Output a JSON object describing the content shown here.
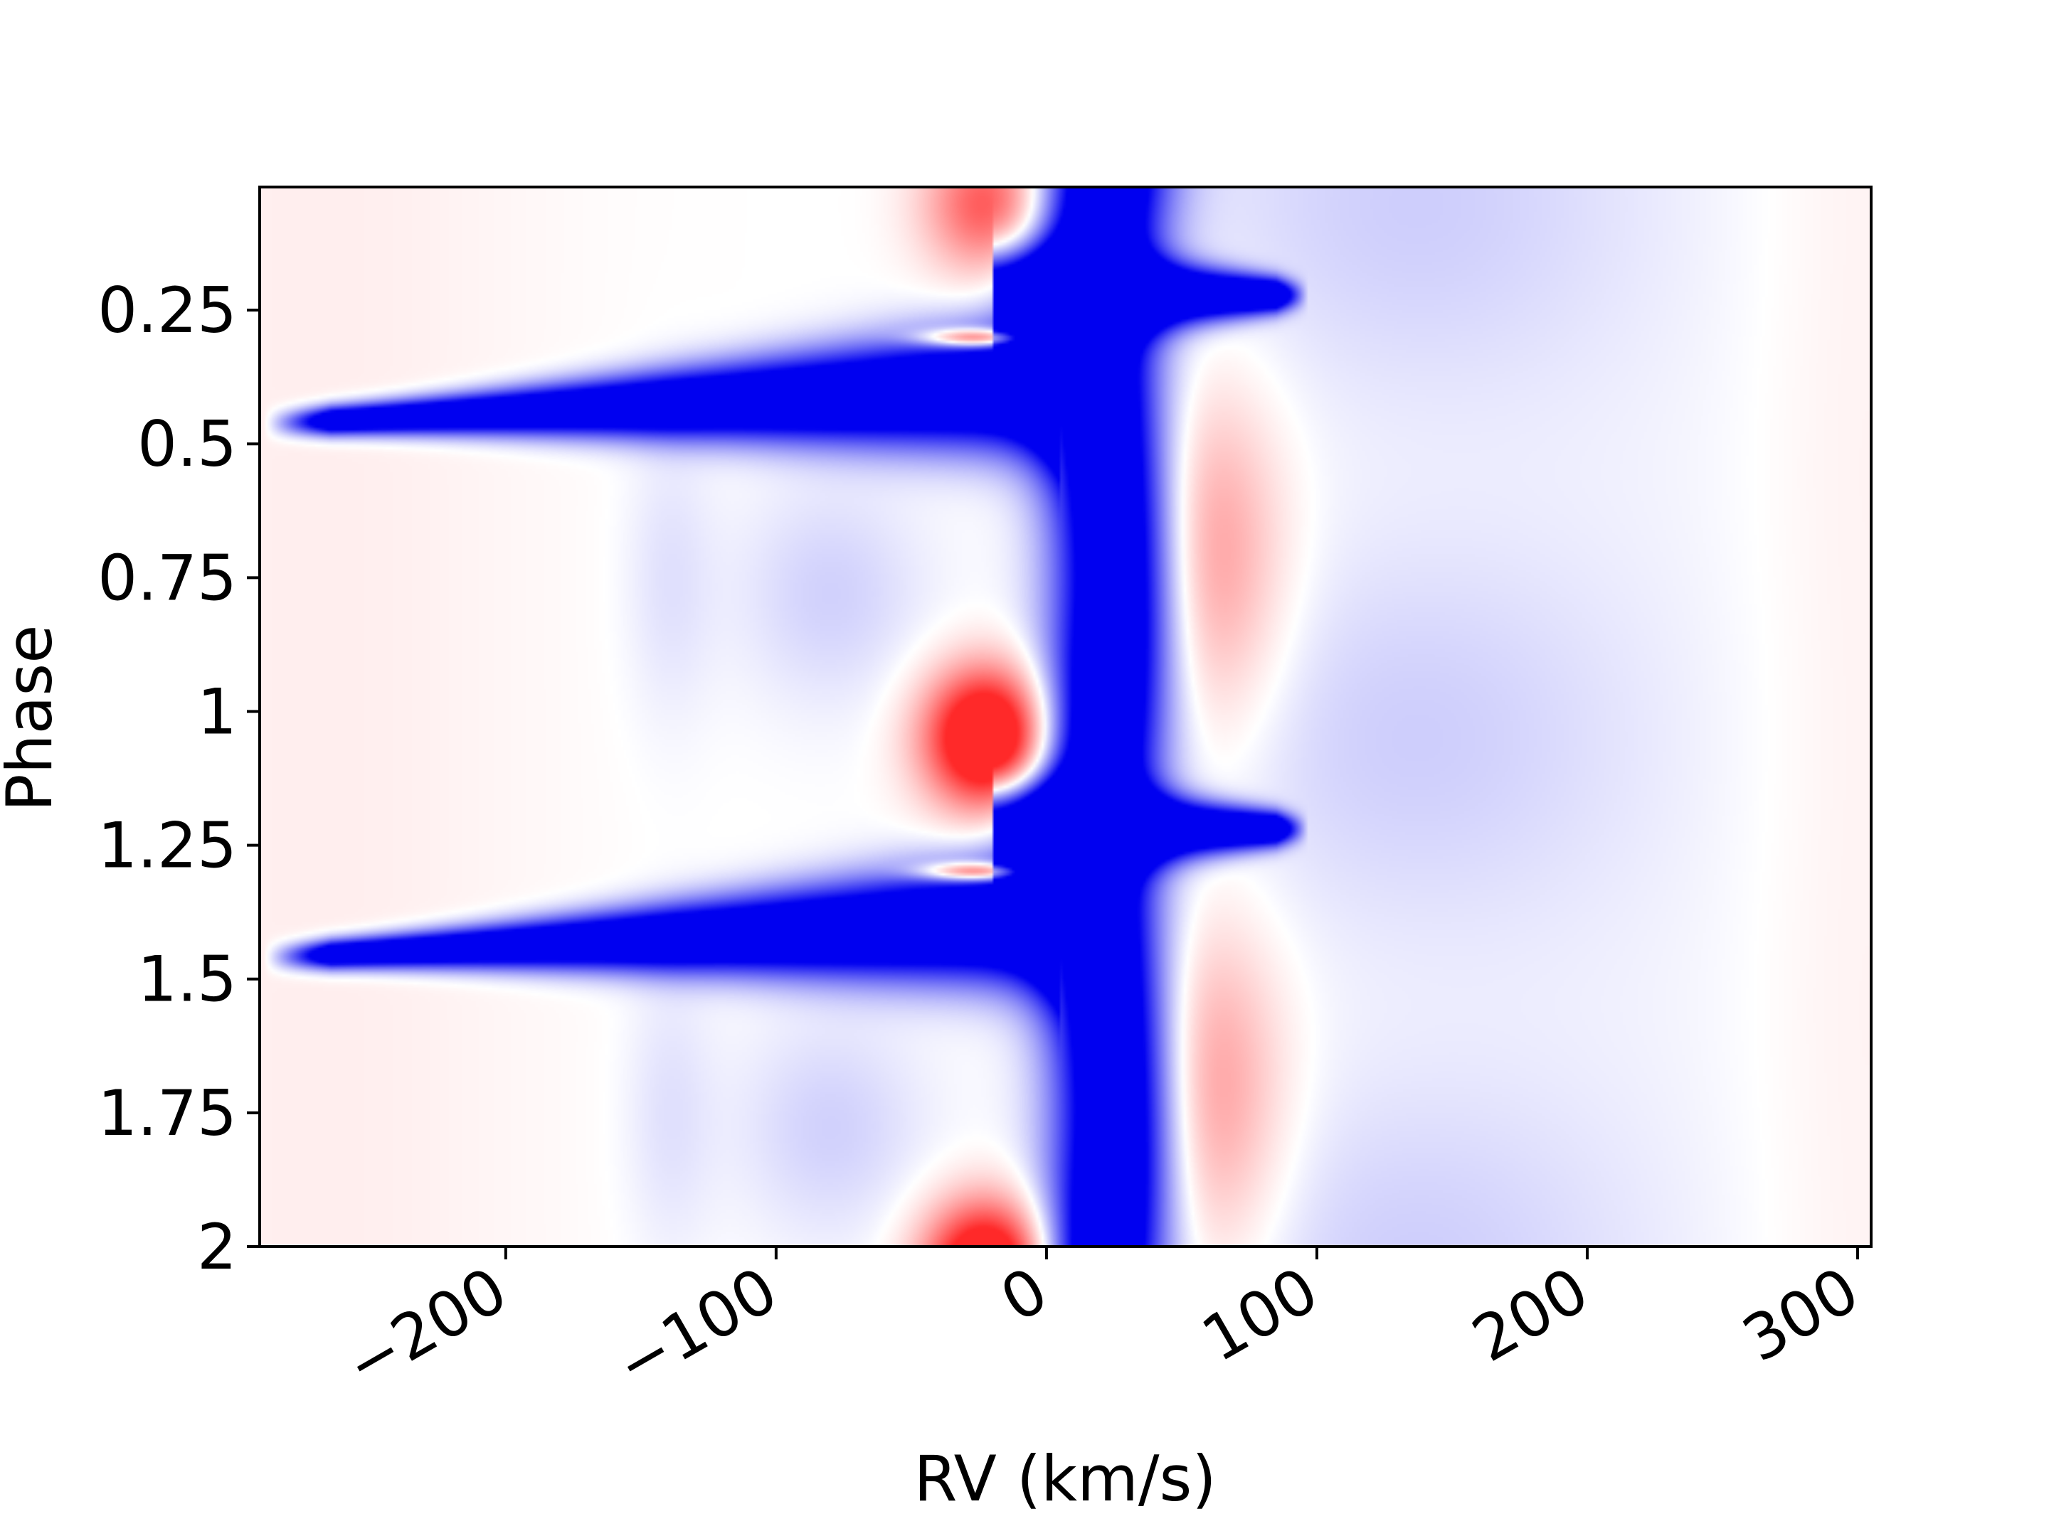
{
  "chart_data": {
    "type": "heatmap",
    "title": "",
    "xlabel": "RV (km/s)",
    "ylabel": "Phase",
    "xlim": [
      -291,
      305
    ],
    "ylim": [
      2.0,
      0.02
    ],
    "x_ticks": [
      {
        "value": -200,
        "label": "−200"
      },
      {
        "value": -100,
        "label": "−100"
      },
      {
        "value": 0,
        "label": "0"
      },
      {
        "value": 100,
        "label": "100"
      },
      {
        "value": 200,
        "label": "200"
      },
      {
        "value": 300,
        "label": "300"
      }
    ],
    "y_ticks": [
      {
        "value": 0.25,
        "label": "0.25"
      },
      {
        "value": 0.5,
        "label": "0.5"
      },
      {
        "value": 0.75,
        "label": "0.75"
      },
      {
        "value": 1.0,
        "label": "1"
      },
      {
        "value": 1.25,
        "label": "1.25"
      },
      {
        "value": 1.5,
        "label": "1.5"
      },
      {
        "value": 1.75,
        "label": "1.75"
      },
      {
        "value": 2.0,
        "label": "2"
      }
    ],
    "x_tick_rotation_deg": 30,
    "colormap": "bwr",
    "colors": {
      "negative": "#0000f0",
      "neutral": "#ffffff",
      "positive": "#ff2a2a"
    },
    "grid": false,
    "features": [
      {
        "kind": "absorption",
        "sign": -1,
        "desc": "central line core",
        "phase": [
          0.0,
          2.0
        ],
        "rv_center": 22,
        "rv_width": 16
      },
      {
        "kind": "absorption",
        "sign": -1,
        "desc": "blue-shifted tail",
        "phase_center": 0.42,
        "rv_range": [
          -285,
          0
        ]
      },
      {
        "kind": "absorption",
        "sign": -1,
        "desc": "blue-shifted tail",
        "phase_center": 1.42,
        "rv_range": [
          -285,
          0
        ]
      },
      {
        "kind": "absorption",
        "sign": -1,
        "desc": "red spur",
        "phase_center": 0.22,
        "rv_range": [
          0,
          95
        ]
      },
      {
        "kind": "absorption",
        "sign": -1,
        "desc": "red spur",
        "phase_center": 1.22,
        "rv_range": [
          0,
          95
        ]
      },
      {
        "kind": "emission",
        "sign": 1,
        "desc": "red-side emission",
        "phase": [
          0.35,
          1.05
        ],
        "rv_center": 58
      },
      {
        "kind": "emission",
        "sign": 1,
        "desc": "red-side emission",
        "phase": [
          1.35,
          2.0
        ],
        "rv_center": 58
      },
      {
        "kind": "emission",
        "sign": 1,
        "desc": "blue-side emission",
        "phase_center": 1.05,
        "rv_center": -22
      },
      {
        "kind": "emission",
        "sign": 1,
        "desc": "blue-side emission",
        "phase_center": 0.05,
        "rv_center": -22
      }
    ]
  }
}
